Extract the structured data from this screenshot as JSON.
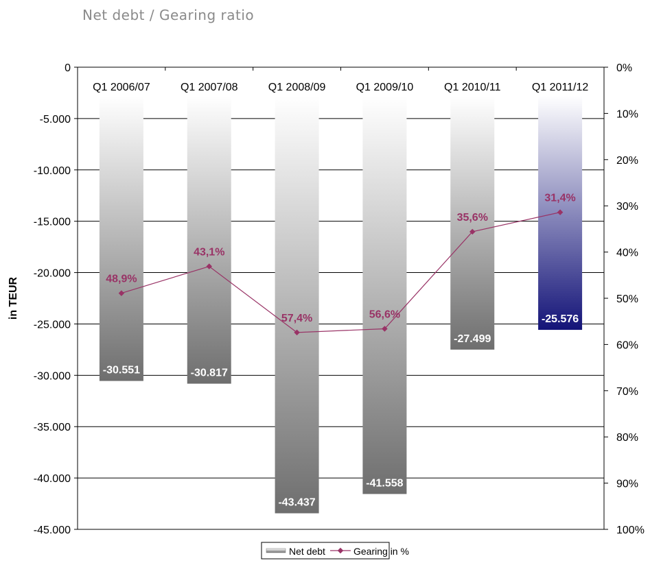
{
  "page_title": "Net debt / Gearing ratio",
  "chart_data": {
    "type": "bar",
    "categories": [
      "Q1 2006/07",
      "Q1 2007/08",
      "Q1 2008/09",
      "Q1 2009/10",
      "Q1 2010/11",
      "Q1 2011/12"
    ],
    "series": [
      {
        "name": "Net debt",
        "type": "bar",
        "axis": "left",
        "values": [
          -30551,
          -30817,
          -43437,
          -41558,
          -27499,
          -25576
        ],
        "labels": [
          "-30.551",
          "-30.817",
          "-43.437",
          "-41.558",
          "-27.499",
          "-25.576"
        ]
      },
      {
        "name": "Gearing in %",
        "type": "line",
        "axis": "right",
        "values": [
          48.9,
          43.1,
          57.4,
          56.6,
          35.6,
          31.4
        ],
        "labels": [
          "48,9%",
          "43,1%",
          "57,4%",
          "56,6%",
          "35,6%",
          "31,4%"
        ]
      }
    ],
    "ylabel": "in TEUR",
    "ylim": [
      -45000,
      0
    ],
    "y_ticks": [
      "0",
      "-5.000",
      "-10.000",
      "-15.000",
      "-20.000",
      "-25.000",
      "-30.000",
      "-35.000",
      "-40.000",
      "-45.000"
    ],
    "y2lim": [
      0,
      100
    ],
    "y2_inverted": true,
    "y2_ticks": [
      "0%",
      "10%",
      "20%",
      "30%",
      "40%",
      "50%",
      "60%",
      "70%",
      "80%",
      "90%",
      "100%"
    ],
    "grid": true,
    "legend_position": "bottom",
    "colors": {
      "bar_dark": "#6e6e6e",
      "bar_light": "#ffffff",
      "highlight_bar_dark": "#1a1a7a",
      "line": "#993366",
      "axis": "#000000"
    }
  }
}
